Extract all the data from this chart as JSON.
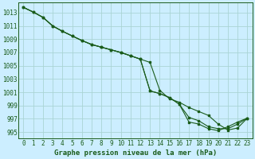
{
  "title": "Graphe pression niveau de la mer (hPa)",
  "background_color": "#cceeff",
  "grid_color": "#aad4d4",
  "line_color": "#1a5c1a",
  "xlim": [
    -0.5,
    23.5
  ],
  "ylim": [
    994.0,
    1014.5
  ],
  "yticks": [
    995,
    997,
    999,
    1001,
    1003,
    1005,
    1007,
    1009,
    1011,
    1013
  ],
  "xticks": [
    0,
    1,
    2,
    3,
    4,
    5,
    6,
    7,
    8,
    9,
    10,
    11,
    12,
    13,
    14,
    15,
    16,
    17,
    18,
    19,
    20,
    21,
    22,
    23
  ],
  "line1_x": [
    0,
    1,
    2,
    3,
    4,
    5,
    6,
    7,
    8,
    9,
    10,
    11,
    12,
    13,
    14,
    15,
    16,
    17,
    18,
    19,
    20,
    21,
    22,
    23
  ],
  "line1_y": [
    1013.8,
    1013.1,
    1012.3,
    1011.0,
    1010.2,
    1009.5,
    1008.8,
    1008.2,
    1007.8,
    1007.4,
    1007.0,
    1006.5,
    1006.0,
    1005.5,
    1001.3,
    1000.0,
    999.5,
    998.7,
    998.1,
    997.5,
    996.2,
    995.3,
    995.6,
    997.1
  ],
  "line2_x": [
    0,
    1,
    2,
    3,
    4,
    5,
    6,
    7,
    8,
    9,
    10,
    11,
    12,
    13,
    14,
    15,
    16,
    17,
    18,
    19,
    20,
    21,
    22,
    23
  ],
  "line2_y": [
    1013.8,
    1013.1,
    1012.3,
    1011.0,
    1010.2,
    1009.5,
    1008.8,
    1008.2,
    1007.8,
    1007.4,
    1007.0,
    1006.5,
    1006.0,
    1001.2,
    1000.8,
    1000.2,
    999.2,
    997.2,
    996.7,
    995.8,
    995.5,
    995.5,
    996.2,
    997.1
  ],
  "line3_x": [
    0,
    1,
    2,
    3,
    4,
    5,
    6,
    7,
    8,
    9,
    10,
    11,
    12,
    13,
    14,
    15,
    16,
    17,
    18,
    19,
    20,
    21,
    22,
    23
  ],
  "line3_y": [
    1013.8,
    1013.1,
    1012.3,
    1011.0,
    1010.2,
    1009.5,
    1008.8,
    1008.2,
    1007.8,
    1007.4,
    1007.0,
    1006.5,
    1006.0,
    1001.2,
    1000.8,
    1000.2,
    999.2,
    996.5,
    996.2,
    995.5,
    995.2,
    995.8,
    996.5,
    997.1
  ],
  "title_fontsize": 6.5,
  "tick_fontsize": 5.5
}
